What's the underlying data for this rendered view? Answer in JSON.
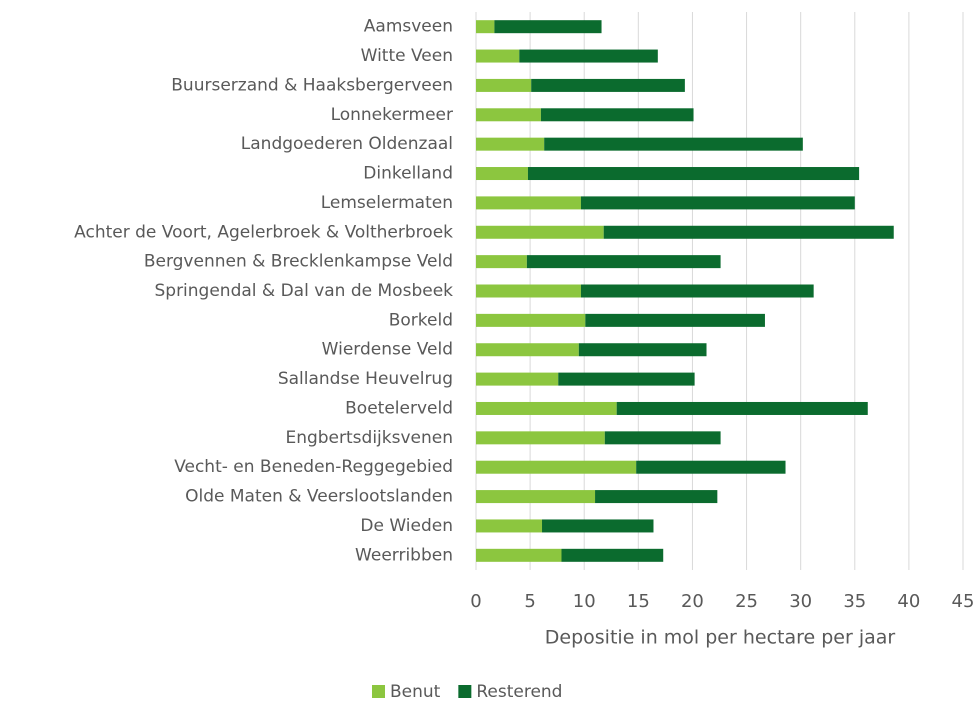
{
  "chart_data": {
    "type": "stacked_barh",
    "xlabel": "Depositie in mol per hectare per jaar",
    "categories": [
      "Aamsveen",
      "Witte Veen",
      "Buurserzand & Haaksbergerveen",
      "Lonnekermeer",
      "Landgoederen Oldenzaal",
      "Dinkelland",
      "Lemselermaten",
      "Achter de Voort, Agelerbroek & Voltherbroek",
      "Bergvennen & Brecklenkampse Veld",
      "Springendal & Dal van de Mosbeek",
      "Borkeld",
      "Wierdense Veld",
      "Sallandse Heuvelrug",
      "Boetelerveld",
      "Engbertsdijksvenen",
      "Vecht- en Beneden-Reggegebied",
      "Olde Maten & Veerslootslanden",
      "De Wieden",
      "Weerribben"
    ],
    "series": [
      {
        "name": "Benut",
        "color": "#8cc63f",
        "values": [
          1.7,
          4.0,
          5.1,
          6.0,
          6.3,
          4.8,
          9.7,
          11.8,
          4.7,
          9.7,
          10.1,
          9.5,
          7.6,
          13.0,
          11.9,
          14.8,
          11.0,
          6.1,
          7.9
        ]
      },
      {
        "name": "Resterend",
        "color": "#0b6b2e",
        "values": [
          9.9,
          12.8,
          14.2,
          14.1,
          23.9,
          30.6,
          25.3,
          26.8,
          17.9,
          21.5,
          16.6,
          11.8,
          12.6,
          23.2,
          10.7,
          13.8,
          11.3,
          10.3,
          9.4
        ]
      }
    ],
    "xlim": [
      0,
      45
    ],
    "xticks": [
      0,
      5,
      10,
      15,
      20,
      25,
      30,
      35,
      40,
      45
    ],
    "grid": true,
    "legend": "bottom"
  }
}
